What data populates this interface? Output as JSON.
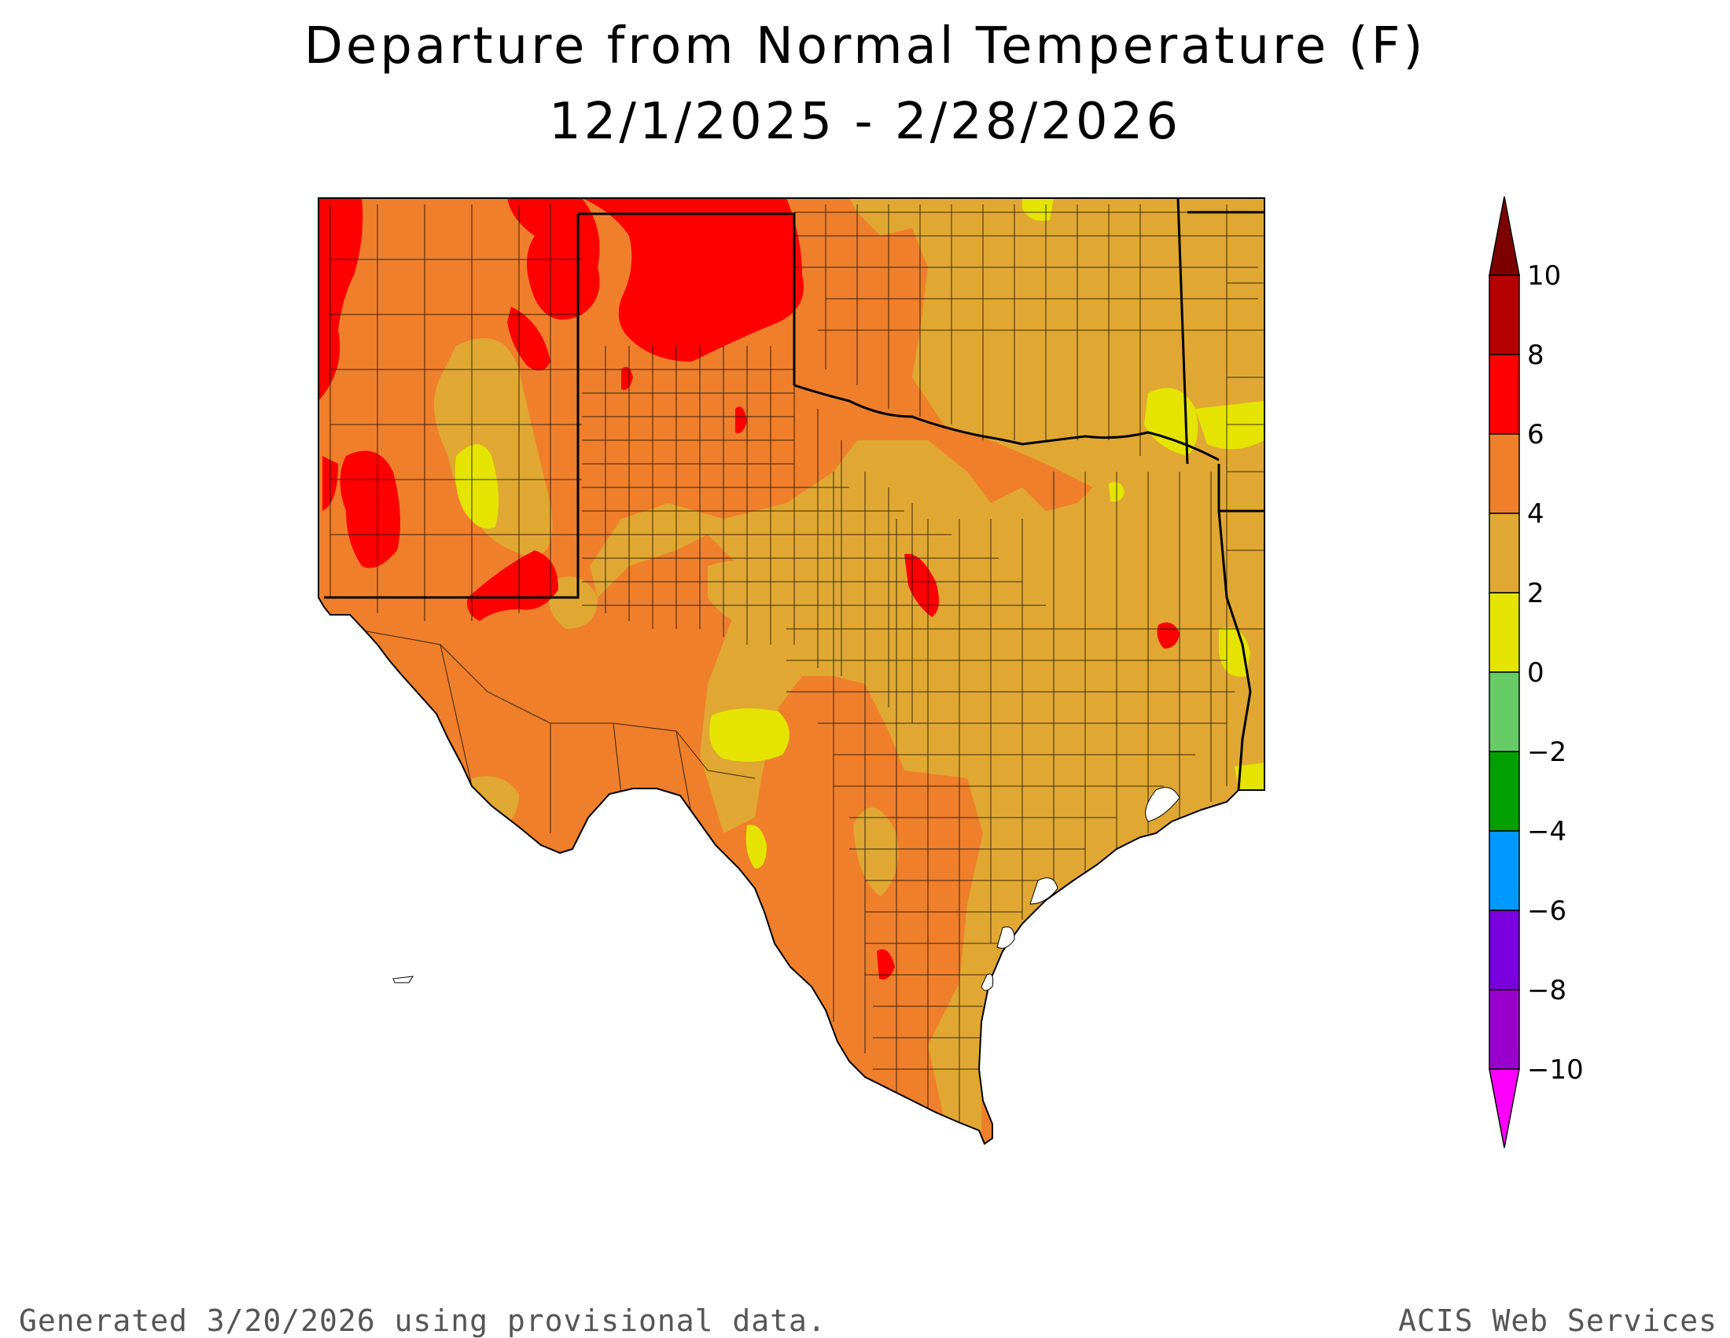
{
  "title": {
    "line1": "Departure from Normal Temperature (F)",
    "line2": "12/1/2025 - 2/28/2026"
  },
  "legend": {
    "bins": [
      {
        "from": 8,
        "to": 10,
        "color": "#b50000"
      },
      {
        "from": 6,
        "to": 8,
        "color": "#ff0000"
      },
      {
        "from": 4,
        "to": 6,
        "color": "#ef7f2b"
      },
      {
        "from": 2,
        "to": 4,
        "color": "#e0a832"
      },
      {
        "from": 0,
        "to": 2,
        "color": "#e4e400"
      },
      {
        "from": -2,
        "to": 0,
        "color": "#66cc66"
      },
      {
        "from": -4,
        "to": -2,
        "color": "#00a000"
      },
      {
        "from": -6,
        "to": -4,
        "color": "#0099ff"
      },
      {
        "from": -8,
        "to": -6,
        "color": "#7a00de"
      },
      {
        "from": -10,
        "to": -8,
        "color": "#9900cc"
      }
    ],
    "over_color": "#7d0000",
    "under_color": "#ff00ff",
    "labels": [
      "10",
      "8",
      "6",
      "4",
      "2",
      "0",
      "−2",
      "−4",
      "−6",
      "−8",
      "−10"
    ]
  },
  "map": {
    "states": [
      "New Mexico",
      "Oklahoma",
      "Texas",
      "Louisiana",
      "Arkansas"
    ],
    "background_color": "#ef7f2b",
    "boundary_color": "#000000"
  },
  "footer": {
    "left": "Generated 3/20/2026  using provisional data.",
    "right": "ACIS Web Services"
  }
}
